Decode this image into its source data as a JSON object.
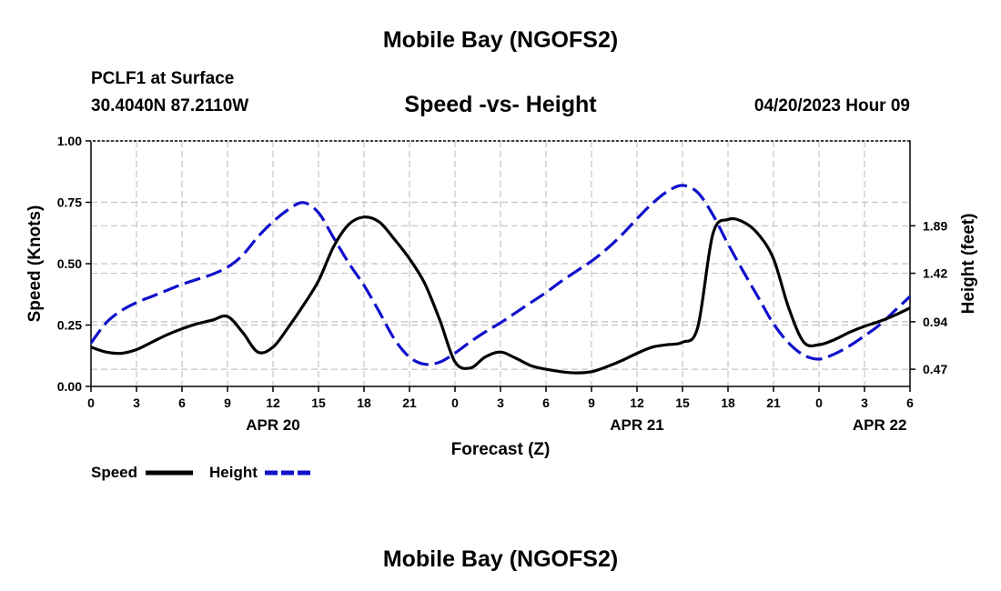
{
  "page": {
    "title_top": "Mobile Bay (NGOFS2)",
    "title_bottom": "Mobile Bay (NGOFS2)",
    "station": "PCLF1 at Surface",
    "coords": "30.4040N  87.2110W",
    "plot_title": "Speed -vs- Height",
    "datetime": "04/20/2023 Hour 09"
  },
  "chart_data": {
    "type": "line",
    "title": "Speed -vs- Height",
    "xlabel": "Forecast (Z)",
    "ylabel": "Speed (Knots)",
    "y2label": "Height (feet)",
    "xlim": [
      0,
      54
    ],
    "ylim": [
      0,
      1.0
    ],
    "y2lim": [
      0.3,
      2.73
    ],
    "x_ticks": [
      0,
      3,
      6,
      9,
      12,
      15,
      18,
      21,
      24,
      27,
      30,
      33,
      36,
      39,
      42,
      45,
      48,
      51,
      54
    ],
    "x_tick_labels": [
      "0",
      "3",
      "6",
      "9",
      "12",
      "15",
      "18",
      "21",
      "0",
      "3",
      "6",
      "9",
      "12",
      "15",
      "18",
      "21",
      "0",
      "3",
      "6"
    ],
    "date_labels": [
      {
        "x": 12,
        "label": "APR 20"
      },
      {
        "x": 36,
        "label": "APR 21"
      },
      {
        "x": 52,
        "label": "APR 22"
      }
    ],
    "y_ticks": [
      0,
      0.25,
      0.5,
      0.75,
      1.0
    ],
    "y_tick_labels": [
      "0.00",
      "0.25",
      "0.50",
      "0.75",
      "1.00"
    ],
    "y2_ticks": [
      0.47,
      0.94,
      1.42,
      1.89
    ],
    "y2_tick_labels": [
      "0.47",
      "0.94",
      "1.42",
      "1.89"
    ],
    "grid": true,
    "legend": "bottom-left",
    "series": [
      {
        "name": "Speed",
        "axis": "left",
        "color": "#000000",
        "dash": "solid",
        "x": [
          0,
          1,
          2,
          3,
          4,
          5,
          6,
          7,
          8,
          9,
          10,
          11,
          12,
          13,
          14,
          15,
          16,
          17,
          18,
          19,
          20,
          21,
          22,
          23,
          24,
          25,
          26,
          27,
          28,
          29,
          30,
          31,
          32,
          33,
          34,
          35,
          36,
          37,
          38,
          39,
          40,
          41,
          42,
          43,
          44,
          45,
          46,
          47,
          48,
          49,
          50,
          51,
          52,
          53,
          54
        ],
        "values": [
          0.16,
          0.14,
          0.135,
          0.15,
          0.18,
          0.21,
          0.235,
          0.255,
          0.27,
          0.285,
          0.22,
          0.14,
          0.16,
          0.24,
          0.33,
          0.43,
          0.57,
          0.66,
          0.69,
          0.67,
          0.6,
          0.52,
          0.42,
          0.27,
          0.1,
          0.075,
          0.12,
          0.14,
          0.115,
          0.085,
          0.07,
          0.06,
          0.055,
          0.06,
          0.08,
          0.105,
          0.135,
          0.16,
          0.17,
          0.18,
          0.24,
          0.62,
          0.68,
          0.67,
          0.62,
          0.52,
          0.32,
          0.18,
          0.17,
          0.19,
          0.22,
          0.245,
          0.265,
          0.29,
          0.32
        ]
      },
      {
        "name": "Height",
        "axis": "right",
        "color": "#1010cc",
        "dash": "dashed",
        "x": [
          0,
          1,
          2,
          3,
          4,
          5,
          6,
          7,
          8,
          9,
          10,
          11,
          12,
          13,
          14,
          15,
          16,
          17,
          18,
          19,
          20,
          21,
          22,
          23,
          24,
          25,
          26,
          27,
          28,
          29,
          30,
          31,
          32,
          33,
          34,
          35,
          36,
          37,
          38,
          39,
          40,
          41,
          42,
          43,
          44,
          45,
          46,
          47,
          48,
          49,
          50,
          51,
          52,
          53,
          54
        ],
        "values": [
          0.73,
          0.93,
          1.05,
          1.13,
          1.19,
          1.25,
          1.31,
          1.36,
          1.41,
          1.48,
          1.6,
          1.78,
          1.93,
          2.05,
          2.12,
          2.02,
          1.77,
          1.52,
          1.3,
          1.04,
          0.77,
          0.59,
          0.52,
          0.54,
          0.63,
          0.74,
          0.84,
          0.93,
          1.03,
          1.13,
          1.23,
          1.34,
          1.44,
          1.54,
          1.66,
          1.8,
          1.96,
          2.11,
          2.23,
          2.29,
          2.22,
          2.0,
          1.71,
          1.44,
          1.18,
          0.92,
          0.73,
          0.61,
          0.57,
          0.62,
          0.7,
          0.8,
          0.91,
          1.05,
          1.19
        ]
      }
    ]
  }
}
